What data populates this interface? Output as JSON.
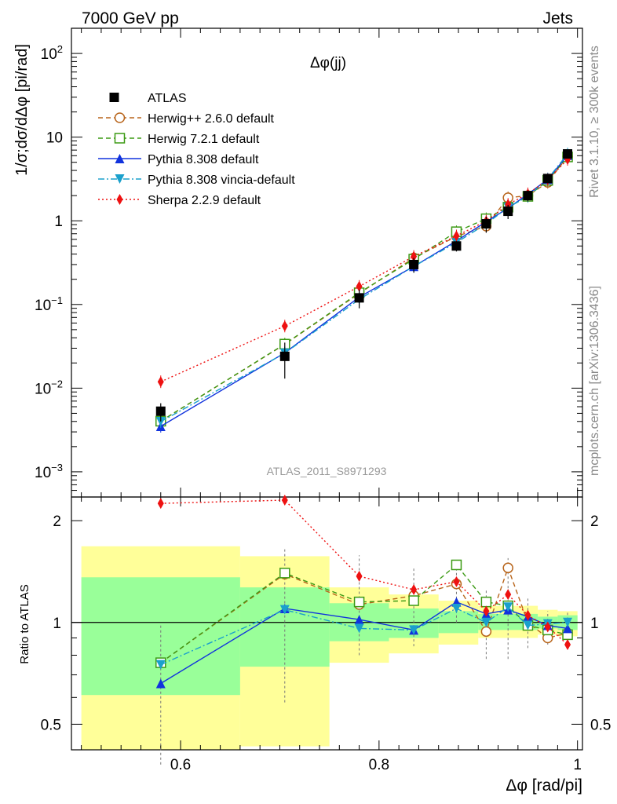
{
  "header": {
    "left": "7000 GeV pp",
    "right": "Jets"
  },
  "side_labels": {
    "rivet": "Rivet 3.1.10, ≥ 300k events",
    "mcplots": "mcplots.cern.ch [arXiv:1306.3436]"
  },
  "colors": {
    "data": "#000000",
    "herwigpp": "#b8651b",
    "herwig7": "#3c9a14",
    "pythia": "#1133dd",
    "vincia": "#1aa0cc",
    "sherpa": "#ee1111",
    "band_yellow": "#ffff99",
    "band_green": "#99ff99"
  },
  "chart_data": {
    "type": "line",
    "title": "Δφ(jj)",
    "analysis_label": "ATLAS_2011_S8971293",
    "xlabel": "Δφ [rad/pi]",
    "ylabel": "1/σ;dσ/dΔφ [pi/rad]",
    "ratio_ylabel": "Ratio to ATLAS",
    "xlim": [
      0.49,
      1.005
    ],
    "ylim": [
      0.0005,
      200
    ],
    "yscale": "log",
    "ratio_ylim": [
      0.42,
      2.35
    ],
    "ratio_yscale": "log",
    "x_ticks": [
      "0.6",
      "0.8",
      "1"
    ],
    "y_ticks": [
      "10^-3",
      "10^-2",
      "10^-1",
      "1",
      "10",
      "10^2"
    ],
    "ratio_ticks": [
      "0.5",
      "1",
      "2"
    ],
    "x": [
      0.58,
      0.705,
      0.78,
      0.835,
      0.878,
      0.908,
      0.93,
      0.95,
      0.97,
      0.99
    ],
    "data": {
      "name": "ATLAS",
      "values": [
        0.0053,
        0.024,
        0.12,
        0.3,
        0.5,
        0.92,
        1.3,
        2.0,
        3.2,
        6.3
      ],
      "errors": [
        0.0013,
        0.011,
        0.03,
        0.06,
        0.07,
        0.2,
        0.25,
        0.3,
        0.4,
        0.7
      ]
    },
    "series": [
      {
        "name": "Herwig++ 2.6.0 default",
        "key": "herwigpp",
        "marker": "circle-open",
        "dash": "6,4",
        "ratio": [
          0.76,
          1.39,
          1.13,
          1.2,
          1.3,
          0.94,
          1.45,
          1.0,
          0.9,
          0.93
        ]
      },
      {
        "name": "Herwig 7.2.1 default",
        "key": "herwig7",
        "marker": "square-open",
        "dash": "6,4",
        "ratio": [
          0.76,
          1.4,
          1.15,
          1.16,
          1.48,
          1.15,
          1.12,
          0.98,
          0.95,
          0.92
        ]
      },
      {
        "name": "Pythia 8.308 default",
        "key": "pythia",
        "marker": "triangle-up",
        "dash": "",
        "ratio": [
          0.66,
          1.1,
          1.02,
          0.95,
          1.15,
          1.06,
          1.09,
          1.04,
          0.98,
          0.96
        ]
      },
      {
        "name": "Pythia 8.308 vincia-default",
        "key": "vincia",
        "marker": "triangle-down",
        "dash": "8,3,2,3",
        "ratio": [
          0.75,
          1.09,
          0.96,
          0.95,
          1.1,
          1.0,
          1.11,
          0.98,
          0.99,
          1.0
        ]
      },
      {
        "name": "Sherpa 2.2.9 default",
        "key": "sherpa",
        "marker": "diamond",
        "dash": "2,3",
        "ratio": [
          2.25,
          2.3,
          1.37,
          1.25,
          1.32,
          1.08,
          1.21,
          1.05,
          0.97,
          0.86
        ]
      }
    ],
    "ratio_error_bars": {
      "x": [
        0.58,
        0.705,
        0.78,
        0.835,
        0.878,
        0.908,
        0.93,
        0.95,
        0.97,
        0.99
      ],
      "lo": [
        0.38,
        0.58,
        0.8,
        0.85,
        1.0,
        0.78,
        0.78,
        0.84,
        0.86,
        0.84
      ],
      "hi": [
        0.98,
        1.65,
        1.58,
        1.45,
        1.45,
        1.25,
        1.55,
        1.18,
        1.08,
        1.08
      ]
    },
    "bands": [
      {
        "x0": 0.5,
        "x1": 0.66,
        "y_lo": 0.42,
        "y_hi": 1.68,
        "g_lo": 0.61,
        "g_hi": 1.36
      },
      {
        "x0": 0.66,
        "x1": 0.75,
        "y_lo": 0.43,
        "y_hi": 1.57,
        "g_lo": 0.74,
        "g_hi": 1.27
      },
      {
        "x0": 0.75,
        "x1": 0.81,
        "y_lo": 0.76,
        "y_hi": 1.27,
        "g_lo": 0.88,
        "g_hi": 1.14
      },
      {
        "x0": 0.81,
        "x1": 0.86,
        "y_lo": 0.81,
        "y_hi": 1.21,
        "g_lo": 0.9,
        "g_hi": 1.1
      },
      {
        "x0": 0.86,
        "x1": 0.9,
        "y_lo": 0.86,
        "y_hi": 1.16,
        "g_lo": 0.93,
        "g_hi": 1.08
      },
      {
        "x0": 0.9,
        "x1": 0.96,
        "y_lo": 0.9,
        "y_hi": 1.12,
        "g_lo": 0.95,
        "g_hi": 1.06
      },
      {
        "x0": 0.96,
        "x1": 0.98,
        "y_lo": 0.92,
        "y_hi": 1.09,
        "g_lo": 0.96,
        "g_hi": 1.04
      },
      {
        "x0": 0.98,
        "x1": 1.0,
        "y_lo": 0.91,
        "y_hi": 1.08,
        "g_lo": 0.95,
        "g_hi": 1.05
      }
    ]
  }
}
